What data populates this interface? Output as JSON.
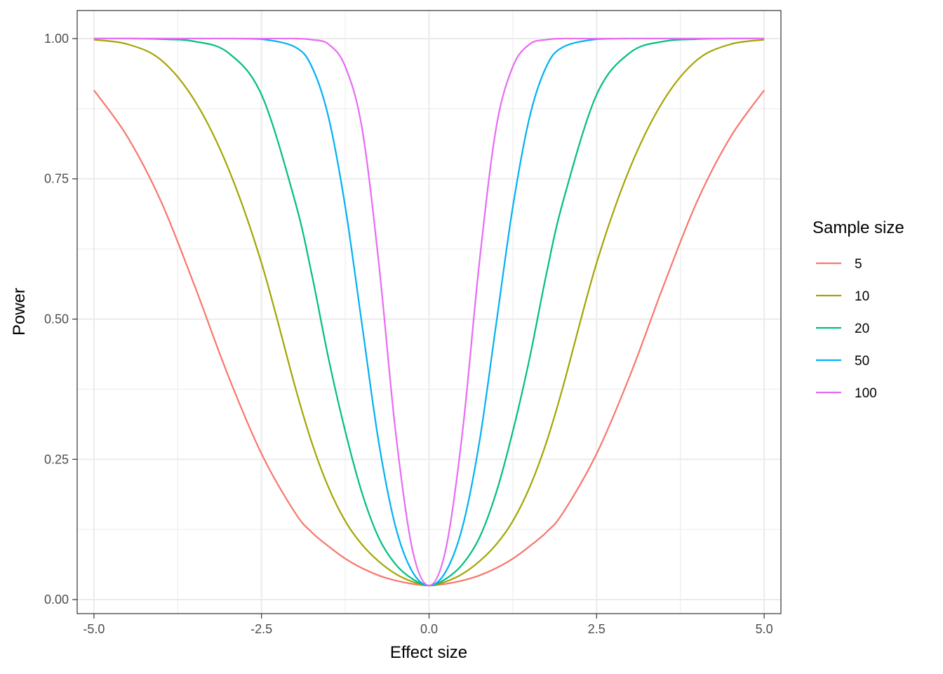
{
  "chart_data": {
    "type": "line",
    "xlabel": "Effect size",
    "ylabel": "Power",
    "xlim": [
      -5.25,
      5.25
    ],
    "ylim": [
      -0.025,
      1.05
    ],
    "x_ticks": [
      -5.0,
      -2.5,
      0.0,
      2.5,
      5.0
    ],
    "x_tick_labels": [
      "-5.0",
      "-2.5",
      "0.0",
      "2.5",
      "5.0"
    ],
    "y_ticks": [
      0.0,
      0.25,
      0.5,
      0.75,
      1.0
    ],
    "y_tick_labels": [
      "0.00",
      "0.25",
      "0.50",
      "0.75",
      "1.00"
    ],
    "grid": true,
    "legend": {
      "title": "Sample size",
      "position": "right"
    },
    "x": [
      -5.0,
      -4.5,
      -4.0,
      -3.5,
      -3.0,
      -2.5,
      -2.0,
      -1.75,
      -1.5,
      -1.25,
      -1.0,
      -0.75,
      -0.5,
      -0.25,
      0.0,
      0.25,
      0.5,
      0.75,
      1.0,
      1.25,
      1.5,
      1.75,
      2.0,
      2.5,
      3.0,
      3.5,
      4.0,
      4.5,
      5.0
    ],
    "series": [
      {
        "name": "5",
        "color": "#F8766D",
        "values": [
          0.908,
          0.825,
          0.71,
          0.56,
          0.4,
          0.26,
          0.155,
          0.12,
          0.095,
          0.073,
          0.056,
          0.043,
          0.034,
          0.028,
          0.025,
          0.028,
          0.034,
          0.043,
          0.056,
          0.073,
          0.095,
          0.12,
          0.155,
          0.26,
          0.4,
          0.56,
          0.71,
          0.825,
          0.908
        ]
      },
      {
        "name": "10",
        "color": "#A3A500",
        "values": [
          0.998,
          0.99,
          0.962,
          0.89,
          0.77,
          0.6,
          0.38,
          0.28,
          0.2,
          0.14,
          0.098,
          0.068,
          0.046,
          0.032,
          0.025,
          0.032,
          0.046,
          0.068,
          0.098,
          0.14,
          0.2,
          0.28,
          0.38,
          0.6,
          0.77,
          0.89,
          0.962,
          0.99,
          0.998
        ]
      },
      {
        "name": "20",
        "color": "#00BF7D",
        "values": [
          1.0,
          1.0,
          0.999,
          0.995,
          0.975,
          0.9,
          0.71,
          0.58,
          0.43,
          0.3,
          0.19,
          0.11,
          0.063,
          0.037,
          0.025,
          0.037,
          0.063,
          0.11,
          0.19,
          0.3,
          0.43,
          0.58,
          0.71,
          0.9,
          0.975,
          0.995,
          0.999,
          1.0,
          1.0
        ]
      },
      {
        "name": "50",
        "color": "#00B0F6",
        "values": [
          1.0,
          1.0,
          1.0,
          1.0,
          1.0,
          0.999,
          0.985,
          0.95,
          0.86,
          0.7,
          0.49,
          0.28,
          0.13,
          0.05,
          0.025,
          0.05,
          0.13,
          0.28,
          0.49,
          0.7,
          0.86,
          0.95,
          0.985,
          0.999,
          1.0,
          1.0,
          1.0,
          1.0,
          1.0
        ]
      },
      {
        "name": "100",
        "color": "#E76BF3",
        "values": [
          1.0,
          1.0,
          1.0,
          1.0,
          1.0,
          1.0,
          1.0,
          0.998,
          0.99,
          0.95,
          0.84,
          0.6,
          0.3,
          0.09,
          0.025,
          0.09,
          0.3,
          0.6,
          0.84,
          0.95,
          0.99,
          0.998,
          1.0,
          1.0,
          1.0,
          1.0,
          1.0,
          1.0,
          1.0
        ]
      }
    ]
  }
}
